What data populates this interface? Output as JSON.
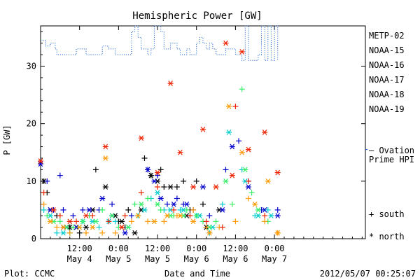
{
  "chart_data": {
    "type": "scatter",
    "title": "Hemispheric Power [GW]",
    "ylabel": "P [GW]",
    "xlabel": "Date and Time",
    "footer_left": "Plot: CCMC",
    "footer_right": "2012/05/07 00:25:07",
    "ylim": [
      0,
      37
    ],
    "y_ticks": [
      0,
      10,
      20,
      30
    ],
    "xlim_hours": [
      0,
      100
    ],
    "x_ticks": [
      {
        "h": 12,
        "time": "12:00",
        "date": "May 4"
      },
      {
        "h": 24,
        "time": "0:00",
        "date": "May 5"
      },
      {
        "h": 36,
        "time": "12:00",
        "date": "May 5"
      },
      {
        "h": 48,
        "time": "0:00",
        "date": "May 6"
      },
      {
        "h": 60,
        "time": "12:00",
        "date": "May 6"
      },
      {
        "h": 72,
        "time": "0:00",
        "date": "May 7"
      }
    ],
    "x_ticks_unit": "hours from 2012-05-04 00:00",
    "grid": false,
    "legend_position": "right",
    "legend_markers": {
      "south": "+",
      "north": "*"
    },
    "series": [
      {
        "name": "METP-02",
        "color": "#000000",
        "marker": "mixed",
        "south": [
          [
            1,
            10
          ],
          [
            2,
            8
          ],
          [
            5,
            4
          ],
          [
            9,
            2
          ],
          [
            12,
            1
          ],
          [
            17,
            12
          ],
          [
            24,
            3
          ],
          [
            26,
            2
          ],
          [
            27,
            5
          ],
          [
            32,
            14
          ],
          [
            34,
            11
          ],
          [
            37,
            12
          ],
          [
            38,
            9
          ],
          [
            42,
            9
          ],
          [
            44,
            10
          ],
          [
            46,
            5
          ],
          [
            48,
            10
          ],
          [
            50,
            6
          ]
        ],
        "north": [
          [
            1,
            10
          ],
          [
            3,
            5
          ],
          [
            7,
            2
          ],
          [
            9,
            2
          ],
          [
            11,
            2
          ],
          [
            14,
            2
          ],
          [
            16,
            5
          ],
          [
            20,
            9
          ],
          [
            23,
            4
          ],
          [
            25,
            3
          ],
          [
            29,
            1
          ],
          [
            31,
            5
          ],
          [
            34,
            11
          ],
          [
            36,
            10
          ],
          [
            40,
            9
          ],
          [
            45,
            4
          ],
          [
            51,
            2
          ],
          [
            55,
            5
          ]
        ]
      },
      {
        "name": "NOAA-15",
        "color": "#0000cc",
        "marker": "mixed",
        "south": [
          [
            2,
            10
          ],
          [
            4,
            5
          ],
          [
            6,
            11
          ],
          [
            7,
            5
          ],
          [
            10,
            4
          ],
          [
            13,
            5
          ],
          [
            18,
            5
          ],
          [
            22,
            6
          ],
          [
            28,
            4
          ],
          [
            33,
            12
          ],
          [
            36,
            11
          ],
          [
            39,
            6
          ],
          [
            42,
            7
          ],
          [
            44,
            6
          ],
          [
            47,
            5
          ],
          [
            52,
            4
          ],
          [
            57,
            12
          ],
          [
            61,
            17
          ],
          [
            64,
            10
          ],
          [
            68,
            5
          ],
          [
            73,
            5
          ]
        ],
        "north": [
          [
            0,
            13
          ],
          [
            3,
            5
          ],
          [
            8,
            2
          ],
          [
            11,
            2
          ],
          [
            15,
            5
          ],
          [
            19,
            7
          ],
          [
            22,
            4
          ],
          [
            26,
            1
          ],
          [
            33,
            12
          ],
          [
            35,
            10
          ],
          [
            37,
            7
          ],
          [
            41,
            6
          ],
          [
            45,
            6
          ],
          [
            50,
            9
          ],
          [
            56,
            5
          ],
          [
            59,
            16
          ],
          [
            64,
            9
          ],
          [
            69,
            5
          ],
          [
            73,
            4
          ]
        ]
      },
      {
        "name": "NOAA-16",
        "color": "#00cccc",
        "marker": "mixed",
        "south": [
          [
            1,
            5
          ],
          [
            5,
            1
          ],
          [
            9,
            1
          ],
          [
            13,
            3
          ],
          [
            18,
            2
          ],
          [
            23,
            3
          ],
          [
            30,
            4
          ],
          [
            34,
            7
          ],
          [
            38,
            5
          ],
          [
            43,
            5
          ],
          [
            48,
            4
          ],
          [
            52,
            1
          ],
          [
            56,
            6
          ],
          [
            62,
            12
          ],
          [
            66,
            4
          ],
          [
            70,
            5
          ]
        ],
        "north": [
          [
            3,
            4
          ],
          [
            7,
            1
          ],
          [
            12,
            2
          ],
          [
            16,
            3
          ],
          [
            21,
            3
          ],
          [
            27,
            2
          ],
          [
            32,
            5
          ],
          [
            36,
            8
          ],
          [
            40,
            5
          ],
          [
            44,
            5
          ],
          [
            49,
            4
          ],
          [
            53,
            2
          ],
          [
            58,
            18.5
          ],
          [
            63,
            10
          ],
          [
            67,
            4
          ],
          [
            71,
            4
          ]
        ]
      },
      {
        "name": "NOAA-17",
        "color": "#33ee66",
        "marker": "mixed",
        "south": [
          [
            2,
            4
          ],
          [
            6,
            3
          ],
          [
            10,
            2
          ],
          [
            15,
            4
          ],
          [
            19,
            5
          ],
          [
            24,
            2
          ],
          [
            29,
            6
          ],
          [
            33,
            7
          ],
          [
            37,
            5
          ],
          [
            41,
            4
          ],
          [
            45,
            5
          ],
          [
            50,
            3
          ],
          [
            54,
            3
          ],
          [
            59,
            6
          ],
          [
            62,
            26
          ],
          [
            65,
            8
          ],
          [
            70,
            3
          ]
        ],
        "north": [
          [
            4,
            3
          ],
          [
            8,
            2
          ],
          [
            13,
            3
          ],
          [
            17,
            3
          ],
          [
            22,
            4
          ],
          [
            27,
            2
          ],
          [
            31,
            6
          ],
          [
            36,
            6
          ],
          [
            40,
            4
          ],
          [
            44,
            4
          ],
          [
            48,
            4
          ],
          [
            52,
            2
          ],
          [
            57,
            10
          ],
          [
            63,
            12
          ],
          [
            67,
            5
          ]
        ]
      },
      {
        "name": "NOAA-18",
        "color": "#ff9900",
        "marker": "mixed",
        "south": [
          [
            1,
            6
          ],
          [
            5,
            2
          ],
          [
            9,
            1
          ],
          [
            14,
            1
          ],
          [
            19,
            1
          ],
          [
            23,
            1
          ],
          [
            28,
            3
          ],
          [
            33,
            3
          ],
          [
            38,
            3
          ],
          [
            42,
            4
          ],
          [
            47,
            5
          ],
          [
            51,
            2
          ],
          [
            55,
            2
          ],
          [
            60,
            3
          ],
          [
            64,
            7
          ],
          [
            69,
            3
          ],
          [
            73,
            1
          ]
        ],
        "north": [
          [
            3,
            3
          ],
          [
            7,
            2
          ],
          [
            12,
            2
          ],
          [
            16,
            2
          ],
          [
            20,
            14
          ],
          [
            25,
            2
          ],
          [
            30,
            4
          ],
          [
            35,
            3
          ],
          [
            39,
            4
          ],
          [
            43,
            4
          ],
          [
            47,
            3
          ],
          [
            52,
            1
          ],
          [
            58,
            23
          ],
          [
            62,
            15
          ],
          [
            66,
            6
          ],
          [
            70,
            10
          ],
          [
            73,
            1
          ]
        ]
      },
      {
        "name": "NOAA-19",
        "color": "#ee2200",
        "marker": "mixed",
        "south": [
          [
            1,
            8
          ],
          [
            6,
            4
          ],
          [
            11,
            3
          ],
          [
            16,
            4
          ],
          [
            21,
            3
          ],
          [
            26,
            4
          ],
          [
            31,
            8
          ],
          [
            36,
            9
          ],
          [
            41,
            5
          ],
          [
            46,
            4
          ],
          [
            51,
            3
          ],
          [
            56,
            2
          ],
          [
            60,
            23
          ],
          [
            64,
            10
          ],
          [
            69,
            4
          ]
        ],
        "north": [
          [
            0,
            13.5
          ],
          [
            4,
            5
          ],
          [
            9,
            3
          ],
          [
            14,
            4
          ],
          [
            20,
            16
          ],
          [
            25,
            2
          ],
          [
            31,
            17.5
          ],
          [
            36,
            11.5
          ],
          [
            40,
            27
          ],
          [
            43,
            15
          ],
          [
            47,
            9
          ],
          [
            50,
            19
          ],
          [
            54,
            9
          ],
          [
            57,
            34
          ],
          [
            59,
            11
          ],
          [
            62,
            32.5
          ],
          [
            64,
            15.5
          ],
          [
            69,
            18.5
          ],
          [
            73,
            11.5
          ]
        ]
      },
      {
        "name": "Ovation Prime HPI",
        "color": "#0055cc",
        "marker": "dotted-line",
        "x": [
          0,
          1,
          1.5,
          2,
          3,
          4,
          4.5,
          5,
          6,
          7,
          8,
          9,
          10,
          11,
          12,
          13,
          14,
          15,
          16,
          17,
          18,
          19,
          20,
          21,
          22,
          23,
          24,
          25,
          26,
          27,
          28,
          29,
          30,
          31,
          32,
          33,
          34,
          35,
          36,
          37,
          38,
          39,
          40,
          41,
          42,
          43,
          44,
          45,
          46,
          47,
          48,
          49,
          50,
          51,
          52,
          53,
          54,
          55,
          56,
          57,
          58,
          59,
          60,
          61,
          62,
          63,
          64,
          65,
          66,
          67,
          68,
          69,
          70,
          71,
          72,
          73
        ],
        "y": [
          34.5,
          34.5,
          33.5,
          33.5,
          34,
          34,
          33,
          32,
          32,
          32,
          32,
          32,
          32,
          33,
          33,
          33,
          32,
          32,
          32,
          32,
          32,
          33.5,
          33.5,
          33,
          33,
          32,
          32,
          32,
          32,
          32,
          36,
          37,
          35,
          33,
          33,
          32,
          33,
          37,
          37,
          36,
          33,
          33,
          34,
          34,
          33,
          32,
          32,
          33,
          32,
          32,
          34,
          35,
          34,
          33,
          34,
          33,
          32,
          32,
          32,
          33,
          33,
          33,
          32,
          32,
          31,
          37,
          31,
          31,
          31,
          32,
          37,
          31,
          37,
          31,
          37,
          31
        ]
      }
    ],
    "legend_entries": [
      "METP-02",
      "NOAA-15",
      "NOAA-16",
      "NOAA-17",
      "NOAA-18",
      "NOAA-19"
    ],
    "legend_ovation": [
      "— Ovation",
      "Prime HPI"
    ],
    "legend_marker_labels": [
      "+ south",
      "* north"
    ]
  }
}
